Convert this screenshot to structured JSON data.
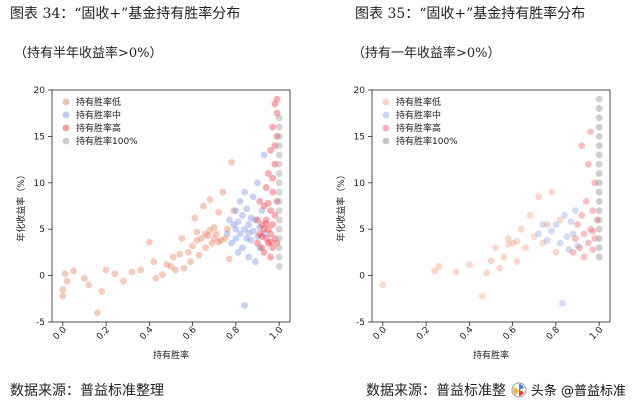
{
  "left": {
    "title": "图表 34：“固收+”基金持有胜率分布",
    "subtitle": "（持有半年收益率>0%）",
    "source": "数据来源：普益标准整理"
  },
  "right": {
    "title": "图表 35：“固收+”基金持有胜率分布",
    "subtitle": "（持有一年收益率>0%）",
    "source": "数据来源：普益标准整"
  },
  "watermark": {
    "text": "头条 @普益标准",
    "icon": "fan-icon"
  },
  "colors": {
    "low": "#e8835f",
    "mid": "#7f93e0",
    "high": "#f03a46",
    "full": "#9a9a9a"
  },
  "chart_data": [
    {
      "type": "scatter",
      "title": "",
      "xlabel": "持有胜率",
      "ylabel": "年化收益率（%）",
      "xlim": [
        -0.05,
        1.05
      ],
      "ylim": [
        -5,
        20
      ],
      "xticks": [
        "0.0",
        "0.2",
        "0.4",
        "0.6",
        "0.8",
        "1.0"
      ],
      "yticks": [
        "-5",
        "0",
        "5",
        "10",
        "15",
        "20"
      ],
      "grid": false,
      "legend_position": "top-left",
      "series": [
        {
          "name": "持有胜率低",
          "color": "#e8835f",
          "points": [
            [
              0.0,
              -1.5
            ],
            [
              0.0,
              -2.2
            ],
            [
              0.01,
              0.2
            ],
            [
              0.02,
              -0.6
            ],
            [
              0.05,
              0.5
            ],
            [
              0.1,
              -0.3
            ],
            [
              0.12,
              -1.0
            ],
            [
              0.18,
              -1.7
            ],
            [
              0.16,
              -4.0
            ],
            [
              0.2,
              0.6
            ],
            [
              0.24,
              0.2
            ],
            [
              0.28,
              -0.6
            ],
            [
              0.32,
              0.4
            ],
            [
              0.36,
              0.6
            ],
            [
              0.4,
              3.6
            ],
            [
              0.42,
              1.5
            ],
            [
              0.43,
              -0.3
            ],
            [
              0.46,
              0.1
            ],
            [
              0.48,
              1.2
            ],
            [
              0.5,
              1.0
            ],
            [
              0.51,
              2.0
            ],
            [
              0.52,
              0.6
            ],
            [
              0.54,
              2.3
            ],
            [
              0.55,
              4.0
            ],
            [
              0.56,
              0.8
            ],
            [
              0.58,
              2.5
            ],
            [
              0.59,
              1.5
            ],
            [
              0.6,
              3.2
            ],
            [
              0.61,
              6.2
            ],
            [
              0.62,
              3.8
            ],
            [
              0.63,
              2.2
            ],
            [
              0.64,
              4.0
            ],
            [
              0.65,
              7.5
            ],
            [
              0.66,
              3.0
            ],
            [
              0.67,
              4.3
            ],
            [
              0.68,
              8.2
            ],
            [
              0.69,
              3.5
            ],
            [
              0.7,
              5.2
            ],
            [
              0.71,
              4.5
            ],
            [
              0.72,
              6.8
            ],
            [
              0.73,
              3.8
            ],
            [
              0.74,
              9.0
            ],
            [
              0.75,
              4.0
            ],
            [
              0.76,
              5.0
            ],
            [
              0.77,
              1.8
            ],
            [
              0.78,
              12.2
            ],
            [
              0.79,
              7.0
            ],
            [
              0.62,
              4.7
            ],
            [
              0.7,
              4.0
            ],
            [
              0.66,
              4.5
            ],
            [
              0.72,
              3.6
            ],
            [
              0.68,
              4.9
            ]
          ]
        },
        {
          "name": "持有胜率中",
          "color": "#7f93e0",
          "points": [
            [
              0.76,
              4.5
            ],
            [
              0.77,
              6.0
            ],
            [
              0.78,
              3.5
            ],
            [
              0.79,
              5.5
            ],
            [
              0.8,
              7.0
            ],
            [
              0.8,
              4.0
            ],
            [
              0.81,
              2.5
            ],
            [
              0.81,
              5.8
            ],
            [
              0.82,
              8.0
            ],
            [
              0.82,
              4.5
            ],
            [
              0.83,
              3.0
            ],
            [
              0.83,
              6.5
            ],
            [
              0.84,
              5.0
            ],
            [
              0.84,
              9.0
            ],
            [
              0.85,
              4.0
            ],
            [
              0.85,
              7.2
            ],
            [
              0.86,
              2.0
            ],
            [
              0.86,
              5.5
            ],
            [
              0.87,
              6.2
            ],
            [
              0.87,
              3.8
            ],
            [
              0.88,
              8.5
            ],
            [
              0.88,
              4.8
            ],
            [
              0.89,
              1.5
            ],
            [
              0.89,
              6.0
            ],
            [
              0.9,
              4.2
            ],
            [
              0.9,
              10.0
            ],
            [
              0.91,
              5.2
            ],
            [
              0.91,
              3.0
            ],
            [
              0.92,
              7.0
            ],
            [
              0.93,
              4.5
            ],
            [
              0.84,
              -3.2
            ],
            [
              0.93,
              13.0
            ],
            [
              0.8,
              5.0
            ],
            [
              0.86,
              4.6
            ]
          ]
        },
        {
          "name": "持有胜率高",
          "color": "#f03a46",
          "points": [
            [
              0.9,
              3.5
            ],
            [
              0.9,
              6.0
            ],
            [
              0.91,
              4.5
            ],
            [
              0.91,
              8.0
            ],
            [
              0.92,
              3.0
            ],
            [
              0.92,
              5.5
            ],
            [
              0.93,
              7.5
            ],
            [
              0.93,
              2.5
            ],
            [
              0.94,
              4.0
            ],
            [
              0.94,
              9.5
            ],
            [
              0.94,
              6.0
            ],
            [
              0.95,
              3.5
            ],
            [
              0.95,
              5.0
            ],
            [
              0.95,
              11.0
            ],
            [
              0.96,
              4.5
            ],
            [
              0.96,
              7.0
            ],
            [
              0.96,
              13.5
            ],
            [
              0.97,
              3.0
            ],
            [
              0.97,
              5.5
            ],
            [
              0.97,
              9.0
            ],
            [
              0.97,
              16.0
            ],
            [
              0.98,
              4.0
            ],
            [
              0.98,
              6.5
            ],
            [
              0.98,
              12.0
            ],
            [
              0.98,
              18.5
            ],
            [
              0.99,
              3.5
            ],
            [
              0.99,
              8.0
            ],
            [
              0.99,
              15.0
            ],
            [
              0.99,
              19.0
            ],
            [
              0.96,
              2.0
            ],
            [
              0.95,
              7.8
            ],
            [
              0.93,
              5.0
            ],
            [
              0.97,
              10.5
            ],
            [
              0.98,
              14.0
            ],
            [
              0.92,
              4.2
            ],
            [
              0.99,
              17.5
            ],
            [
              0.96,
              3.6
            ],
            [
              0.94,
              5.6
            ]
          ]
        },
        {
          "name": "持有胜率100%",
          "color": "#9a9a9a",
          "points": [
            [
              1.0,
              1.0
            ],
            [
              1.0,
              2.0
            ],
            [
              1.0,
              3.0
            ],
            [
              1.0,
              4.0
            ],
            [
              1.0,
              5.0
            ],
            [
              1.0,
              6.0
            ],
            [
              1.0,
              7.0
            ],
            [
              1.0,
              8.0
            ],
            [
              1.0,
              9.0
            ],
            [
              1.0,
              10.0
            ],
            [
              1.0,
              11.0
            ],
            [
              1.0,
              12.0
            ],
            [
              1.0,
              13.0
            ],
            [
              1.0,
              14.0
            ],
            [
              1.0,
              15.0
            ],
            [
              1.0,
              16.0
            ],
            [
              1.0,
              17.0
            ]
          ]
        }
      ]
    },
    {
      "type": "scatter",
      "title": "",
      "xlabel": "持有胜率",
      "ylabel": "年化收益率（%）",
      "xlim": [
        -0.05,
        1.05
      ],
      "ylim": [
        -5,
        20
      ],
      "xticks": [
        "0.0",
        "0.2",
        "0.4",
        "0.6",
        "0.8",
        "1.0"
      ],
      "yticks": [
        "-5",
        "0",
        "5",
        "10",
        "15",
        "20"
      ],
      "grid": false,
      "legend_position": "top-left",
      "series": [
        {
          "name": "持有胜率低",
          "color": "#f2a189",
          "points": [
            [
              0.0,
              -1.0
            ],
            [
              0.24,
              0.5
            ],
            [
              0.26,
              1.0
            ],
            [
              0.34,
              0.4
            ],
            [
              0.4,
              1.2
            ],
            [
              0.46,
              -2.2
            ],
            [
              0.48,
              0.3
            ],
            [
              0.5,
              1.6
            ],
            [
              0.52,
              3.0
            ],
            [
              0.54,
              0.8
            ],
            [
              0.56,
              2.0
            ],
            [
              0.58,
              4.0
            ],
            [
              0.6,
              3.5
            ],
            [
              0.62,
              1.5
            ],
            [
              0.64,
              5.0
            ],
            [
              0.66,
              3.0
            ],
            [
              0.68,
              6.5
            ],
            [
              0.7,
              4.2
            ],
            [
              0.72,
              8.5
            ],
            [
              0.74,
              3.5
            ],
            [
              0.76,
              5.5
            ],
            [
              0.78,
              9.0
            ],
            [
              0.8,
              2.5
            ],
            [
              0.82,
              6.0
            ],
            [
              0.58,
              3.4
            ],
            [
              0.62,
              3.7
            ]
          ]
        },
        {
          "name": "持有胜率中",
          "color": "#9aa9e6",
          "points": [
            [
              0.72,
              4.5
            ],
            [
              0.74,
              5.5
            ],
            [
              0.76,
              3.8
            ],
            [
              0.78,
              4.8
            ],
            [
              0.8,
              5.5
            ],
            [
              0.82,
              3.5
            ],
            [
              0.84,
              6.5
            ],
            [
              0.85,
              4.2
            ],
            [
              0.86,
              2.8
            ],
            [
              0.87,
              5.8
            ],
            [
              0.88,
              4.5
            ],
            [
              0.9,
              3.2
            ],
            [
              0.83,
              -3.0
            ],
            [
              0.89,
              7.0
            ]
          ]
        },
        {
          "name": "持有胜率高",
          "color": "#f26870",
          "points": [
            [
              0.88,
              2.5
            ],
            [
              0.89,
              4.0
            ],
            [
              0.9,
              5.5
            ],
            [
              0.91,
              3.0
            ],
            [
              0.92,
              6.5
            ],
            [
              0.93,
              4.5
            ],
            [
              0.94,
              8.0
            ],
            [
              0.95,
              3.5
            ],
            [
              0.95,
              12.0
            ],
            [
              0.96,
              5.0
            ],
            [
              0.96,
              15.5
            ],
            [
              0.97,
              2.8
            ],
            [
              0.97,
              7.0
            ],
            [
              0.98,
              4.0
            ],
            [
              0.98,
              10.0
            ],
            [
              0.99,
              6.0
            ],
            [
              0.92,
              14.0
            ],
            [
              0.93,
              2.0
            ],
            [
              0.97,
              4.8
            ]
          ]
        },
        {
          "name": "持有胜率100%",
          "color": "#8a8a8a",
          "points": [
            [
              1.0,
              2.0
            ],
            [
              1.0,
              3.0
            ],
            [
              1.0,
              4.0
            ],
            [
              1.0,
              5.0
            ],
            [
              1.0,
              6.0
            ],
            [
              1.0,
              7.0
            ],
            [
              1.0,
              8.0
            ],
            [
              1.0,
              9.0
            ],
            [
              1.0,
              10.0
            ],
            [
              1.0,
              11.0
            ],
            [
              1.0,
              12.0
            ],
            [
              1.0,
              13.0
            ],
            [
              1.0,
              14.0
            ],
            [
              1.0,
              15.0
            ],
            [
              1.0,
              16.0
            ],
            [
              1.0,
              17.0
            ],
            [
              1.0,
              18.0
            ],
            [
              1.0,
              19.0
            ]
          ]
        }
      ]
    }
  ]
}
